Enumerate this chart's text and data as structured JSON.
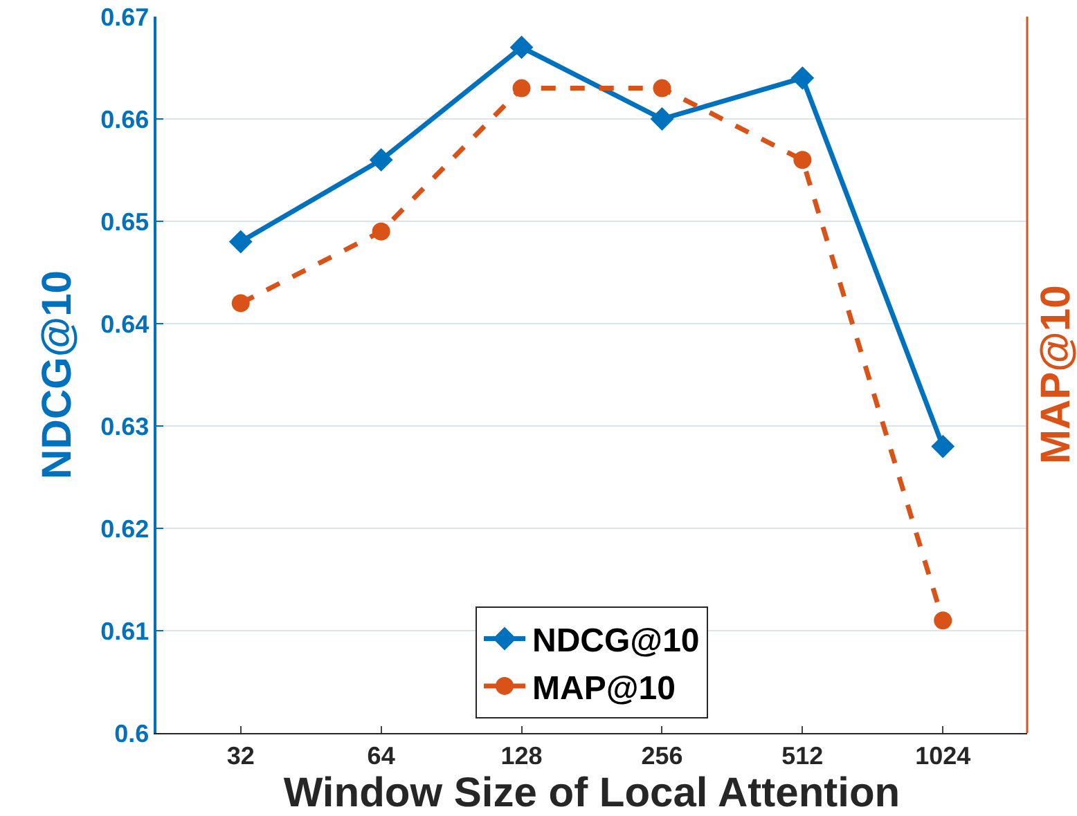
{
  "chart_data": {
    "type": "line",
    "xlabel": "Window Size of Local Attention",
    "ylabel": "NDCG@10",
    "y2label": "MAP@10",
    "categories": [
      "32",
      "64",
      "128",
      "256",
      "512",
      "1024"
    ],
    "series": [
      {
        "name": "NDCG@10",
        "color": "#0072bd",
        "values": [
          0.648,
          0.656,
          0.667,
          0.66,
          0.664,
          0.628
        ],
        "marker": "diamond",
        "line_style": "solid"
      },
      {
        "name": "MAP@10",
        "color": "#d95319",
        "values": [
          0.642,
          0.649,
          0.663,
          0.663,
          0.656,
          0.611
        ],
        "marker": "circle",
        "line_style": "dashed"
      }
    ],
    "ylim": [
      0.6,
      0.67
    ],
    "yticks": [
      0.6,
      0.61,
      0.62,
      0.63,
      0.64,
      0.65,
      0.66,
      0.67
    ],
    "grid": "y",
    "legend": "bottom",
    "tick_labels": "xy"
  }
}
